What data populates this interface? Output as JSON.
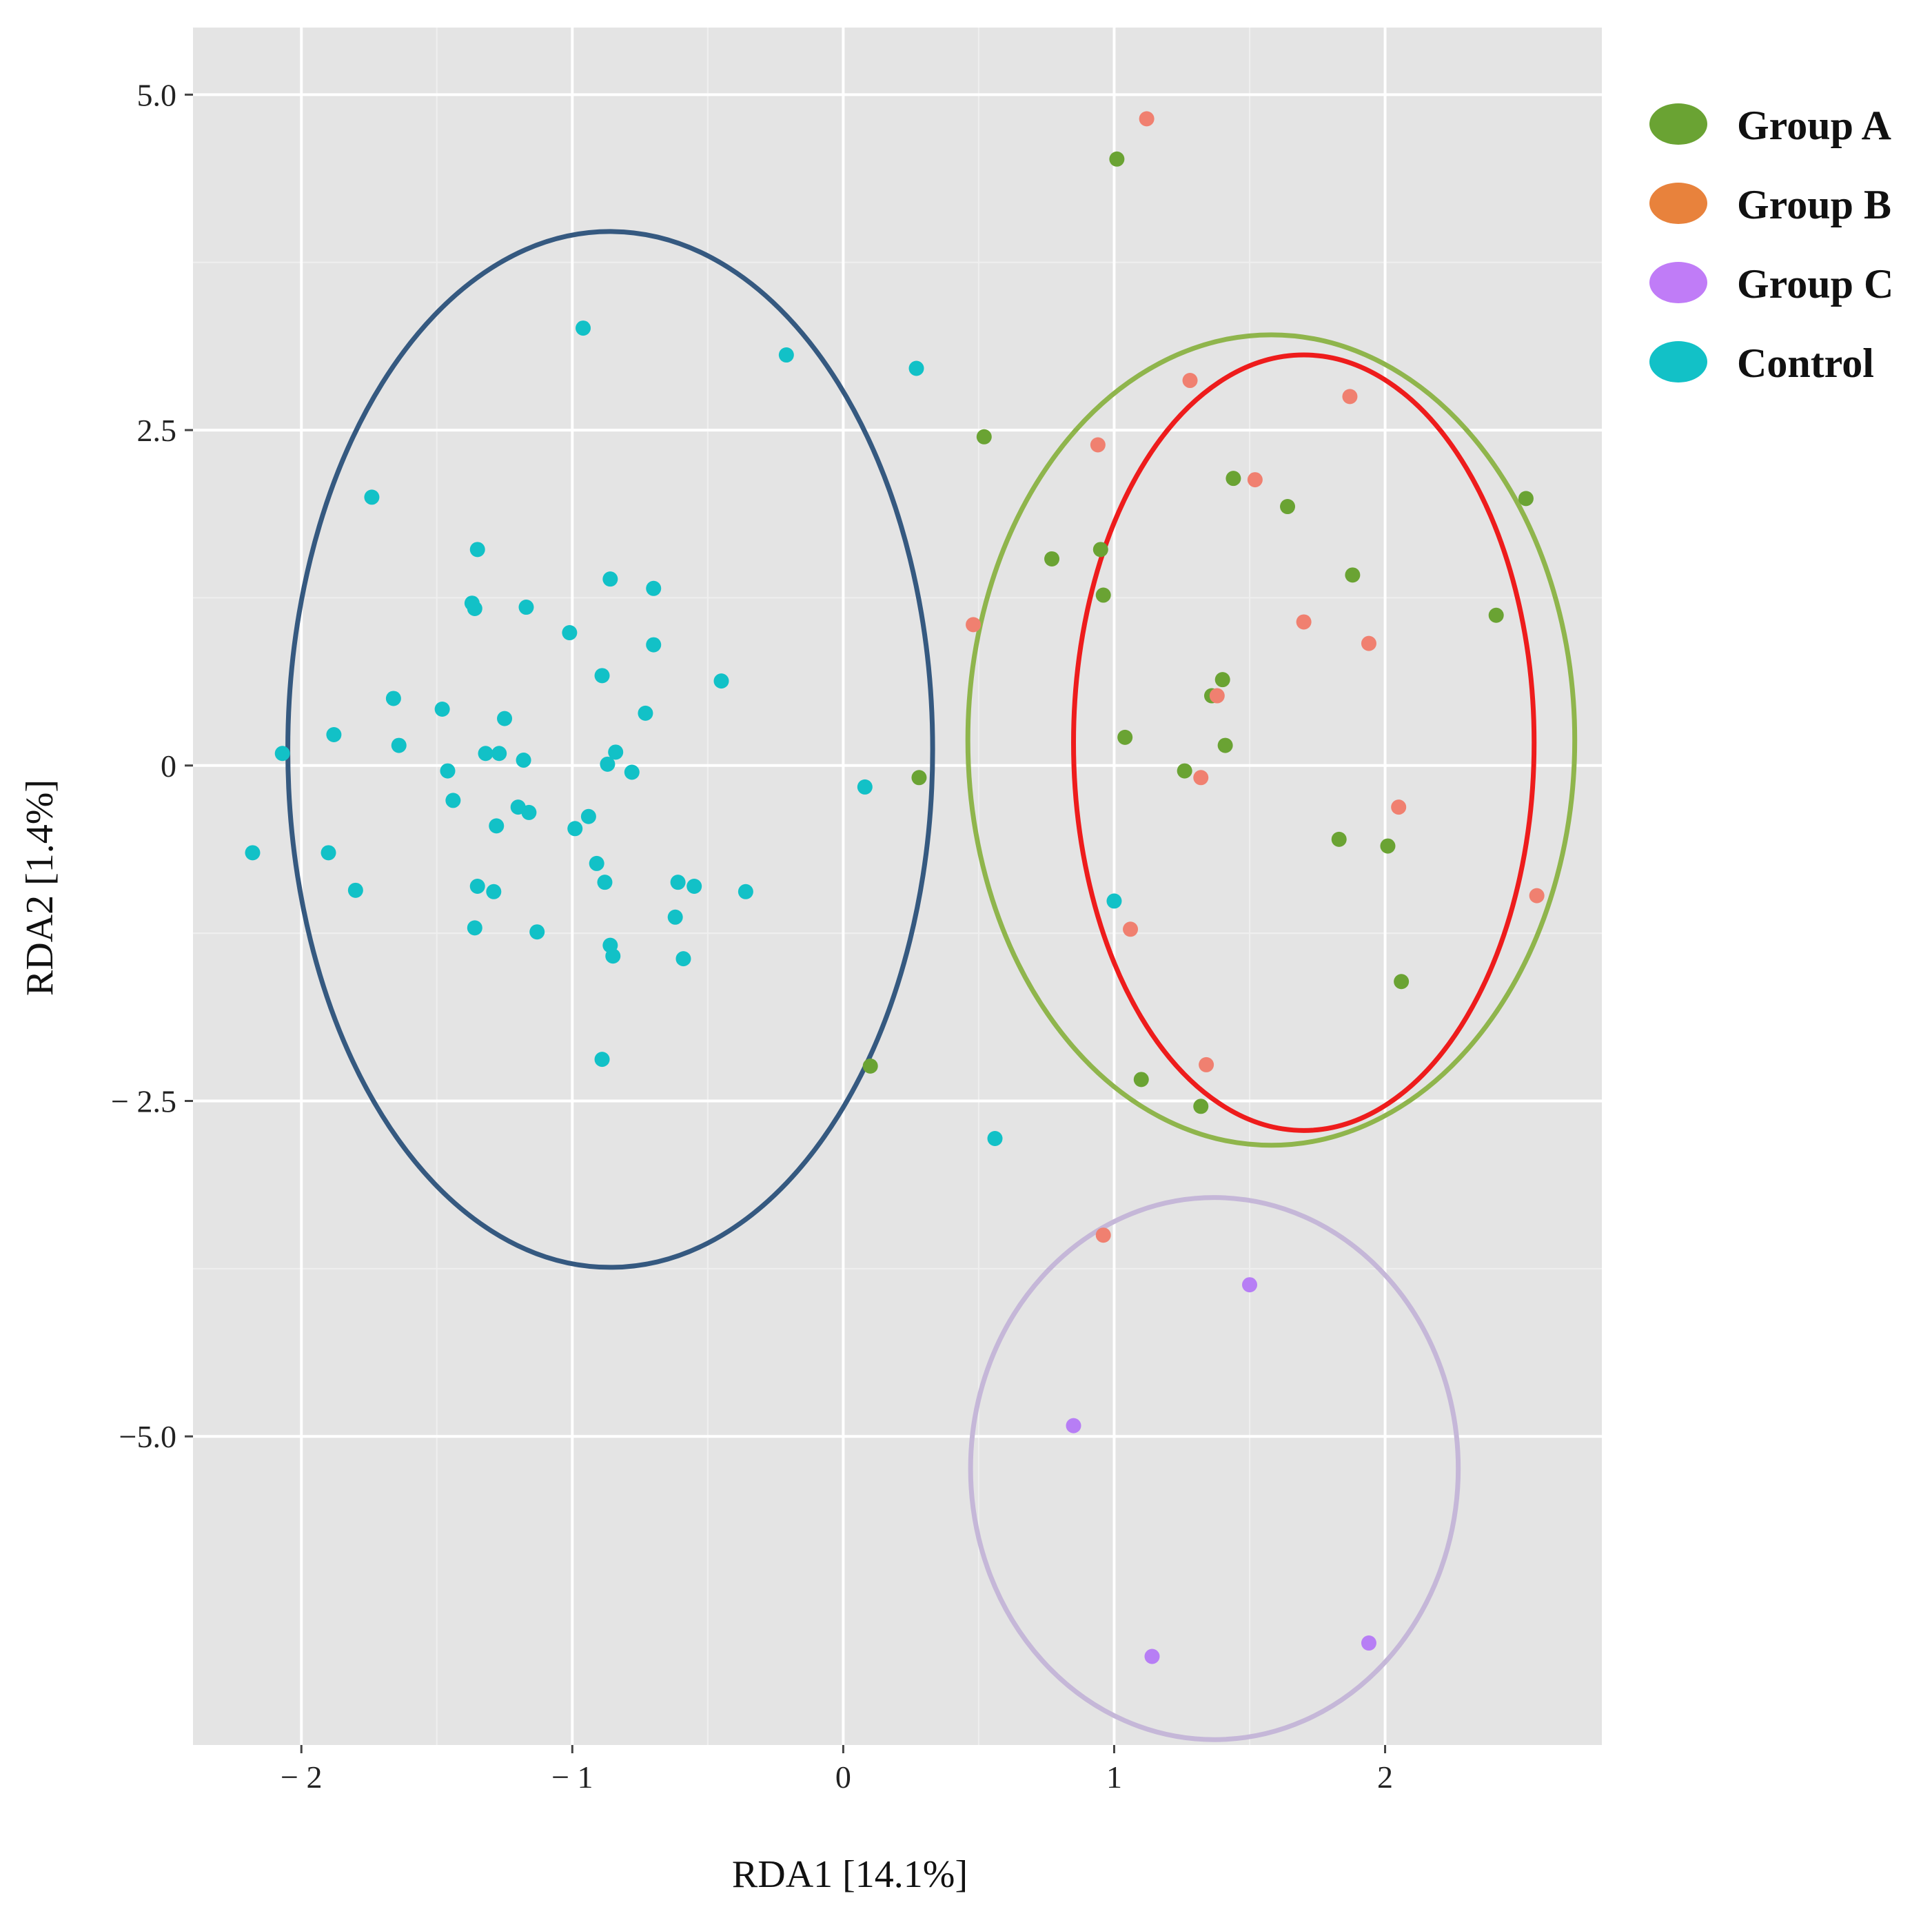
{
  "chart_data": {
    "type": "scatter",
    "title": "",
    "xlabel": "RDA1 [14.1%]",
    "ylabel": "RDA2 [1.4%]",
    "xlim": [
      -2.4,
      2.8
    ],
    "ylim": [
      -7.3,
      5.5
    ],
    "xticks": [
      -2,
      -1,
      0,
      1,
      2
    ],
    "xtick_labels": [
      "− 2",
      "− 1",
      "0",
      "1",
      "2"
    ],
    "yticks": [
      5.0,
      2.5,
      0,
      -2.5,
      -5.0
    ],
    "ytick_labels": [
      "5.0",
      "2.5",
      "0",
      "− 2.5",
      "−5.0"
    ],
    "grid": true,
    "legend_position": "right",
    "series": [
      {
        "name": "Group A",
        "color": "#6aa333",
        "legend_color": "#6aa333",
        "points": [
          [
            1.01,
            4.52
          ],
          [
            0.52,
            2.45
          ],
          [
            1.44,
            2.14
          ],
          [
            1.64,
            1.93
          ],
          [
            2.52,
            1.99
          ],
          [
            0.77,
            1.54
          ],
          [
            0.95,
            1.61
          ],
          [
            0.96,
            1.27
          ],
          [
            1.88,
            1.42
          ],
          [
            2.41,
            1.12
          ],
          [
            1.4,
            0.64
          ],
          [
            1.36,
            0.52
          ],
          [
            1.41,
            0.15
          ],
          [
            1.04,
            0.21
          ],
          [
            1.26,
            -0.04
          ],
          [
            0.28,
            -0.09
          ],
          [
            1.83,
            -0.55
          ],
          [
            2.01,
            -0.6
          ],
          [
            2.06,
            -1.61
          ],
          [
            0.1,
            -2.24
          ],
          [
            1.1,
            -2.34
          ],
          [
            1.32,
            -2.54
          ]
        ]
      },
      {
        "name": "Group B",
        "color": "#f08070",
        "legend_color": "#e8823c",
        "points": [
          [
            1.12,
            4.82
          ],
          [
            1.28,
            2.87
          ],
          [
            1.87,
            2.75
          ],
          [
            0.94,
            2.39
          ],
          [
            1.52,
            2.13
          ],
          [
            1.7,
            1.07
          ],
          [
            0.48,
            1.05
          ],
          [
            1.94,
            0.91
          ],
          [
            1.38,
            0.52
          ],
          [
            1.32,
            -0.09
          ],
          [
            2.05,
            -0.31
          ],
          [
            1.06,
            -1.22
          ],
          [
            2.56,
            -0.97
          ],
          [
            1.34,
            -2.23
          ],
          [
            0.96,
            -3.5
          ]
        ]
      },
      {
        "name": "Group C",
        "color": "#b77ef5",
        "legend_color": "#c07cf7",
        "points": [
          [
            1.5,
            -3.87
          ],
          [
            0.85,
            -4.92
          ],
          [
            1.14,
            -6.64
          ],
          [
            1.94,
            -6.54
          ]
        ]
      },
      {
        "name": "Control",
        "color": "#12c1c7",
        "legend_color": "#12c1c7",
        "points": [
          [
            -0.96,
            3.26
          ],
          [
            -0.21,
            3.06
          ],
          [
            0.27,
            2.96
          ],
          [
            -1.74,
            2.0
          ],
          [
            -1.35,
            1.61
          ],
          [
            -1.37,
            1.21
          ],
          [
            -1.36,
            1.17
          ],
          [
            -1.17,
            1.18
          ],
          [
            -0.86,
            1.39
          ],
          [
            -0.7,
            1.32
          ],
          [
            -1.01,
            0.99
          ],
          [
            -0.7,
            0.9
          ],
          [
            -0.89,
            0.67
          ],
          [
            -0.45,
            0.63
          ],
          [
            -1.66,
            0.5
          ],
          [
            -1.48,
            0.42
          ],
          [
            -0.73,
            0.39
          ],
          [
            -1.25,
            0.35
          ],
          [
            -1.88,
            0.23
          ],
          [
            -1.64,
            0.15
          ],
          [
            -2.07,
            0.09
          ],
          [
            -1.32,
            0.09
          ],
          [
            -1.27,
            0.09
          ],
          [
            -1.18,
            0.04
          ],
          [
            -0.84,
            0.1
          ],
          [
            -0.87,
            0.01
          ],
          [
            -1.46,
            -0.04
          ],
          [
            -0.78,
            -0.05
          ],
          [
            0.08,
            -0.16
          ],
          [
            -1.44,
            -0.26
          ],
          [
            -1.2,
            -0.31
          ],
          [
            -1.16,
            -0.35
          ],
          [
            -0.94,
            -0.38
          ],
          [
            -1.28,
            -0.45
          ],
          [
            -0.99,
            -0.47
          ],
          [
            -2.18,
            -0.65
          ],
          [
            -1.9,
            -0.65
          ],
          [
            -0.91,
            -0.73
          ],
          [
            -0.88,
            -0.87
          ],
          [
            -0.61,
            -0.87
          ],
          [
            -0.55,
            -0.9
          ],
          [
            -0.36,
            -0.94
          ],
          [
            -1.8,
            -0.93
          ],
          [
            -1.35,
            -0.9
          ],
          [
            -1.29,
            -0.94
          ],
          [
            -1.36,
            -1.21
          ],
          [
            -1.13,
            -1.24
          ],
          [
            -0.62,
            -1.13
          ],
          [
            -0.86,
            -1.34
          ],
          [
            -0.85,
            -1.42
          ],
          [
            -0.59,
            -1.44
          ],
          [
            1.0,
            -1.01
          ],
          [
            -0.89,
            -2.19
          ],
          [
            0.56,
            -2.78
          ]
        ]
      }
    ],
    "ellipses": [
      {
        "group": "Control",
        "color": "#355980",
        "cx": -0.86,
        "cy": 0.12,
        "rx": 1.19,
        "ry": 3.86
      },
      {
        "group": "Group A",
        "color": "#8fb54c",
        "cx": 1.58,
        "cy": 0.19,
        "rx": 1.12,
        "ry": 3.02
      },
      {
        "group": "Group B",
        "color": "#ee1c1c",
        "cx": 1.7,
        "cy": 0.17,
        "rx": 0.85,
        "ry": 2.89
      },
      {
        "group": "Group C",
        "color": "#c5b7d8",
        "cx": 1.37,
        "cy": -5.24,
        "rx": 0.9,
        "ry": 2.02
      }
    ]
  }
}
